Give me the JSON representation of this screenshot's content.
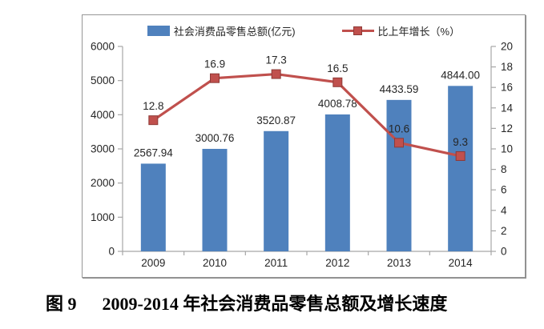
{
  "figure": {
    "number_label": "图 9",
    "caption": "2009-2014 年社会消费品零售总额及增长速度"
  },
  "chart_data": {
    "type": "bar+line combo",
    "categories": [
      "2009",
      "2010",
      "2011",
      "2012",
      "2013",
      "2014"
    ],
    "series": [
      {
        "name": "社会消费品零售总额(亿元)",
        "type": "bar",
        "axis": "left",
        "color": "#4F81BD",
        "values": [
          2567.94,
          3000.76,
          3520.87,
          4008.78,
          4433.59,
          4844.0
        ],
        "labels": [
          "2567.94",
          "3000.76",
          "3520.87",
          "4008.78",
          "4433.59",
          "4844.00"
        ]
      },
      {
        "name": "比上年增长（%）",
        "type": "line",
        "axis": "right",
        "color": "#C0504D",
        "marker": "square",
        "marker_border_color": "#8E3A37",
        "values": [
          12.8,
          16.9,
          17.3,
          16.5,
          10.6,
          9.3
        ],
        "labels": [
          "12.8",
          "16.9",
          "17.3",
          "16.5",
          "10.6",
          "9.3"
        ]
      }
    ],
    "left_axis": {
      "min": 0,
      "max": 6000,
      "step": 1000,
      "ticks": [
        "0",
        "1000",
        "2000",
        "3000",
        "4000",
        "5000",
        "6000"
      ]
    },
    "right_axis": {
      "min": 0,
      "max": 20,
      "step": 2,
      "ticks": [
        "0",
        "2",
        "4",
        "6",
        "8",
        "10",
        "12",
        "14",
        "16",
        "18",
        "20"
      ]
    },
    "grid": false,
    "legend_position": "top",
    "axis_color": "#A6A6A6",
    "text_color": "#262626"
  }
}
